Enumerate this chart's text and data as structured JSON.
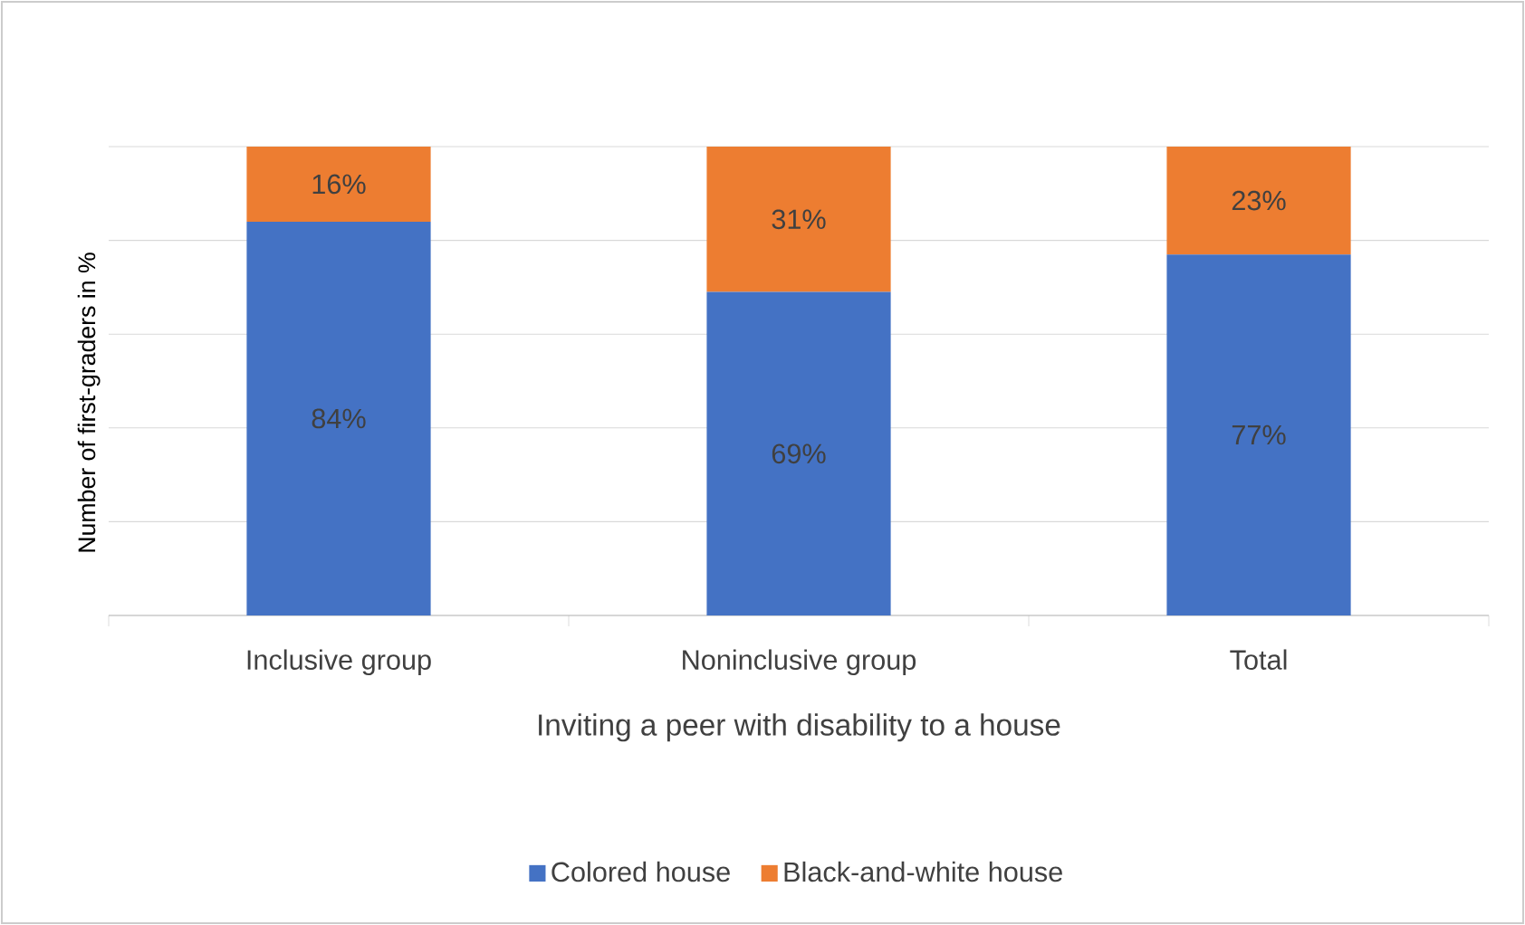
{
  "chart_data": {
    "type": "bar",
    "stacked": true,
    "xlabel": "Inviting a peer with disability to a house",
    "ylabel": "Number of first-graders in %",
    "categories": [
      "Inclusive group",
      "Noninclusive group",
      "Total"
    ],
    "series": [
      {
        "name": "Colored house",
        "color": "#4472c4",
        "values": [
          84,
          69,
          77
        ],
        "value_labels": [
          "84%",
          "69%",
          "77%"
        ]
      },
      {
        "name": "Black-and-white house",
        "color": "#ed7d31",
        "values": [
          16,
          31,
          23
        ],
        "value_labels": [
          "16%",
          "31%",
          "23%"
        ]
      }
    ],
    "ylim": [
      0,
      100
    ],
    "yticks": [
      {
        "value": 0,
        "label": null
      },
      {
        "value": 20,
        "label": null
      },
      {
        "value": 40,
        "label": null
      },
      {
        "value": 60,
        "label": null
      },
      {
        "value": 80,
        "label": null
      },
      {
        "value": 100,
        "label": null
      }
    ],
    "grid": "y",
    "legend": "bottom",
    "tick_labels": "x"
  }
}
